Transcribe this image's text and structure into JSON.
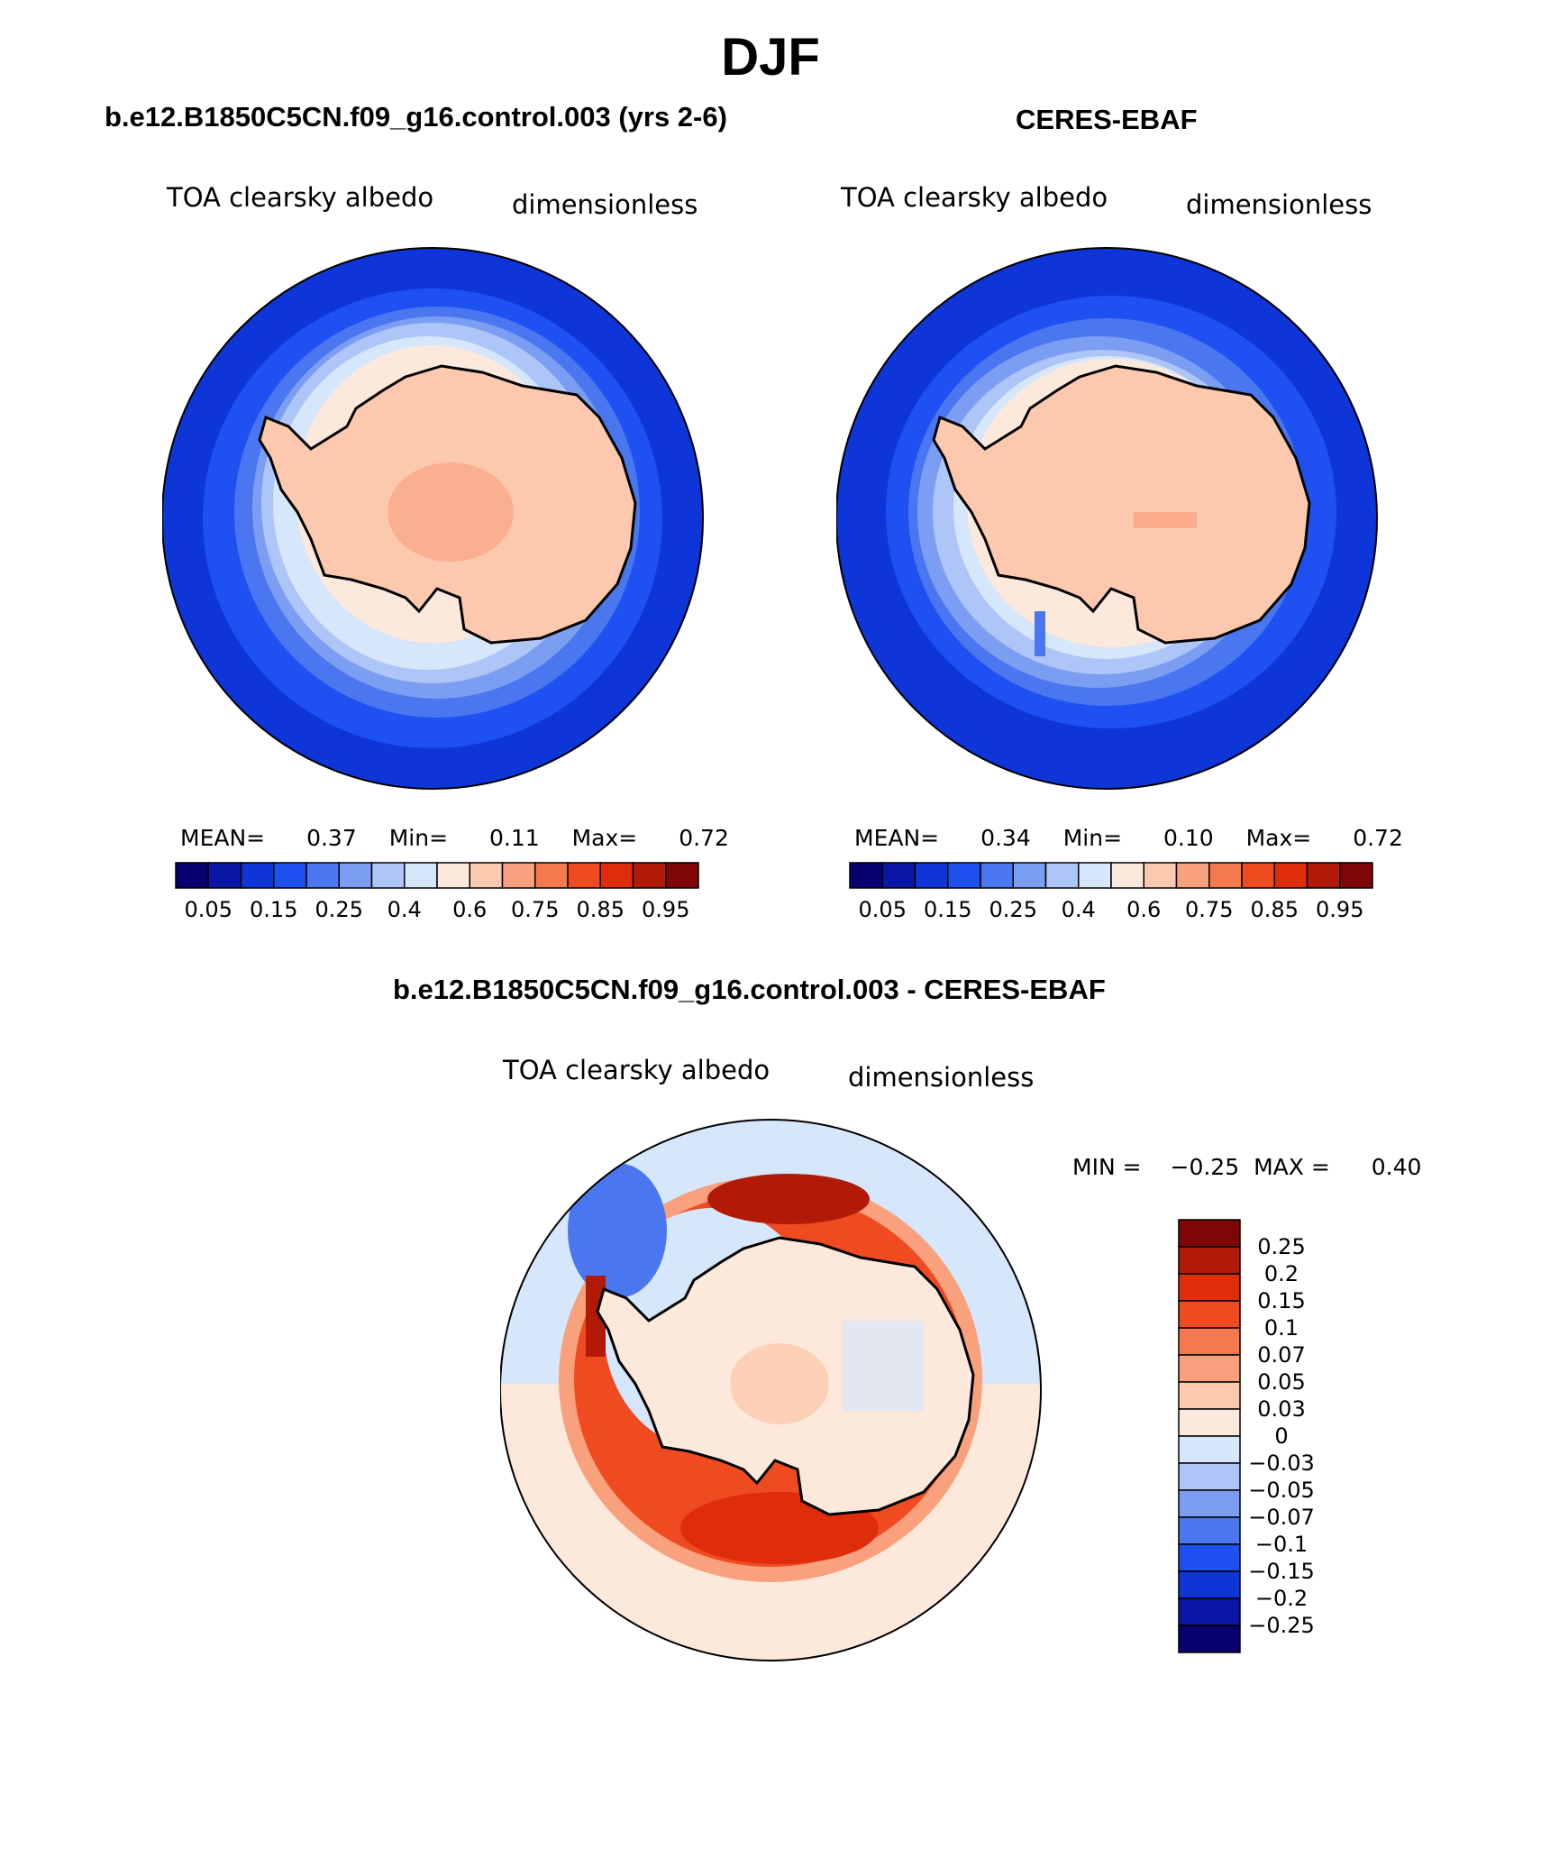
{
  "title": "DJF",
  "panels": [
    {
      "id": "model",
      "title": "b.e12.B1850C5CN.f09_g16.control.003 (yrs 2-6)",
      "variable": "TOA clearsky albedo",
      "units": "dimensionless",
      "stats": {
        "mean_label": "MEAN=",
        "mean": "0.37",
        "min_label": "Min=",
        "min": "0.11",
        "max_label": "Max=",
        "max": "0.72"
      }
    },
    {
      "id": "obs",
      "title": "CERES-EBAF",
      "variable": "TOA clearsky albedo",
      "units": "dimensionless",
      "stats": {
        "mean_label": "MEAN=",
        "mean": "0.34",
        "min_label": "Min=",
        "min": "0.10",
        "max_label": "Max=",
        "max": "0.72"
      }
    },
    {
      "id": "diff",
      "title": "b.e12.B1850C5CN.f09_g16.control.003 - CERES-EBAF",
      "variable": "TOA clearsky albedo",
      "units": "dimensionless",
      "stats": {
        "min_label": "MIN =",
        "min": "−0.25",
        "max_label": "MAX =",
        "max": "0.40"
      }
    }
  ],
  "colorbar_abs": {
    "colors": [
      "#08006e",
      "#0a16a6",
      "#0d35d8",
      "#1e50f2",
      "#4a76f0",
      "#7c9ef2",
      "#adc5f7",
      "#d6e6fb",
      "#fde9dc",
      "#fcc9ae",
      "#f9a07c",
      "#f5784f",
      "#ef4a20",
      "#df2d0c",
      "#b21a08",
      "#7e0606"
    ],
    "tick_labels": [
      "0.05",
      "0.15",
      "0.25",
      "0.4",
      "0.6",
      "0.75",
      "0.85",
      "0.95"
    ]
  },
  "colorbar_diff": {
    "colors": [
      "#7e0606",
      "#b21a08",
      "#df2d0c",
      "#ef4a20",
      "#f5784f",
      "#f9a07c",
      "#fcc9ae",
      "#fde9dc",
      "#d6e6fb",
      "#adc5f7",
      "#7c9ef2",
      "#4a76f0",
      "#1e50f2",
      "#0d35d8",
      "#0a16a6",
      "#08006e"
    ],
    "tick_labels": [
      "0.25",
      "0.2",
      "0.15",
      "0.1",
      "0.07",
      "0.05",
      "0.03",
      "0",
      "−0.03",
      "−0.05",
      "−0.07",
      "−0.1",
      "−0.15",
      "−0.2",
      "−0.25"
    ]
  }
}
